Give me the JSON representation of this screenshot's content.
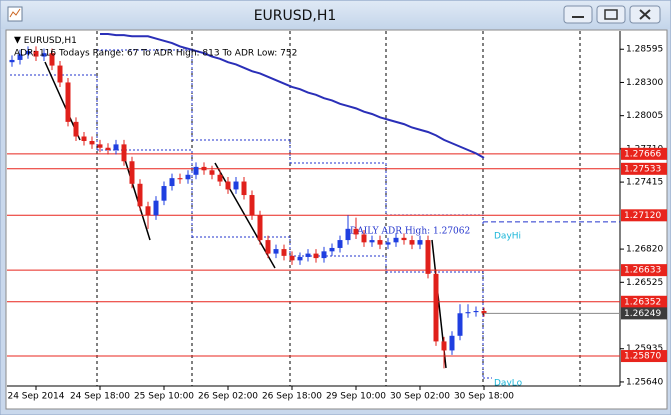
{
  "window": {
    "title": "EURUSD,H1"
  },
  "chart_data": {
    "type": "candlestick",
    "symbol_label": "EURUSD,H1",
    "info": "ADR: 116  Todays Range: 67  To ADR High: 813  To ADR Low: 752",
    "categories": [
      null,
      null,
      null,
      "24 Sep 2014",
      null,
      null,
      null,
      null,
      null,
      null,
      null,
      "24 Sep 18:00",
      null,
      null,
      null,
      null,
      null,
      null,
      null,
      "25 Sep 10:00",
      null,
      null,
      null,
      null,
      null,
      null,
      null,
      "26 Sep 02:00",
      null,
      null,
      null,
      null,
      null,
      null,
      null,
      "26 Sep 18:00",
      null,
      null,
      null,
      null,
      null,
      null,
      null,
      "29 Sep 10:00",
      null,
      null,
      null,
      null,
      null,
      null,
      null,
      "30 Sep 02:00",
      null,
      null,
      null,
      null,
      null,
      null,
      null,
      "30 Sep 18:00"
    ],
    "open": [
      1.2848,
      1.285,
      1.2855,
      1.2858,
      1.2853,
      1.2856,
      1.2845,
      1.283,
      1.2795,
      1.2782,
      1.2778,
      1.2775,
      1.2772,
      1.277,
      1.2775,
      1.276,
      1.274,
      1.272,
      1.2712,
      1.2725,
      1.2738,
      1.2745,
      1.2744,
      1.2748,
      1.2755,
      1.2752,
      1.2748,
      1.2742,
      1.2735,
      1.2742,
      1.273,
      1.2712,
      1.269,
      1.2678,
      1.2682,
      1.2676,
      1.2672,
      1.2675,
      1.2678,
      1.2674,
      1.268,
      1.2683,
      1.269,
      1.27,
      1.2695,
      1.2688,
      1.269,
      1.2686,
      1.2688,
      1.2692,
      1.269,
      1.2686,
      1.269,
      1.266,
      1.26,
      1.2592,
      1.2605,
      1.2625,
      1.2626,
      1.2627
    ],
    "high": [
      1.2854,
      1.2859,
      1.2862,
      1.2862,
      1.286,
      1.286,
      1.2849,
      1.2834,
      1.2799,
      1.2786,
      1.2782,
      1.2779,
      1.2776,
      1.2779,
      1.2779,
      1.2764,
      1.2744,
      1.2724,
      1.2729,
      1.2742,
      1.2749,
      1.2749,
      1.2752,
      1.2759,
      1.2759,
      1.2756,
      1.2752,
      1.2746,
      1.2746,
      1.2746,
      1.2734,
      1.2716,
      1.2694,
      1.2686,
      1.2686,
      1.268,
      1.2679,
      1.2682,
      1.2682,
      1.2684,
      1.2687,
      1.2694,
      1.2712,
      1.271,
      1.2699,
      1.2694,
      1.2694,
      1.2692,
      1.2696,
      1.2696,
      1.2694,
      1.2694,
      1.2694,
      1.2664,
      1.2604,
      1.2609,
      1.2633,
      1.2633,
      1.2631,
      1.263
    ],
    "low": [
      1.2844,
      1.2846,
      1.2851,
      1.2849,
      1.2849,
      1.2841,
      1.2826,
      1.2791,
      1.2778,
      1.2774,
      1.2771,
      1.2768,
      1.2766,
      1.2766,
      1.2756,
      1.2736,
      1.2716,
      1.27,
      1.2708,
      1.2721,
      1.2734,
      1.274,
      1.274,
      1.2744,
      1.2748,
      1.2744,
      1.2738,
      1.2731,
      1.2731,
      1.2726,
      1.2708,
      1.2686,
      1.2674,
      1.2674,
      1.2672,
      1.2668,
      1.2668,
      1.2671,
      1.267,
      1.267,
      1.2676,
      1.2679,
      1.2686,
      1.2691,
      1.2684,
      1.2684,
      1.2682,
      1.2682,
      1.2684,
      1.2686,
      1.2682,
      1.2682,
      1.2656,
      1.2596,
      1.2576,
      1.2588,
      1.2601,
      1.2621,
      1.2622,
      1.2622
    ],
    "close": [
      1.285,
      1.2855,
      1.2858,
      1.2853,
      1.2856,
      1.2845,
      1.283,
      1.2795,
      1.2782,
      1.2778,
      1.2775,
      1.2772,
      1.277,
      1.2775,
      1.276,
      1.274,
      1.272,
      1.2712,
      1.2725,
      1.2738,
      1.2745,
      1.2744,
      1.2748,
      1.2755,
      1.2752,
      1.2748,
      1.2742,
      1.2735,
      1.2742,
      1.273,
      1.2712,
      1.269,
      1.2678,
      1.2682,
      1.2676,
      1.2672,
      1.2675,
      1.2678,
      1.2674,
      1.268,
      1.2683,
      1.269,
      1.27,
      1.2695,
      1.2688,
      1.269,
      1.2686,
      1.2688,
      1.2692,
      1.269,
      1.2686,
      1.269,
      1.266,
      1.26,
      1.2592,
      1.2605,
      1.2625,
      1.2626,
      1.2627,
      1.26249
    ],
    "up_color": "#1f3fe0",
    "down_color": "#e0201b",
    "series": [
      {
        "type": "line",
        "color": "#2a2fb8",
        "values": [
          null,
          null,
          null,
          null,
          null,
          null,
          null,
          null,
          null,
          null,
          null,
          1.2873,
          1.2873,
          1.2872,
          1.2872,
          1.2871,
          1.2871,
          1.2871,
          1.2869,
          1.2867,
          1.2865,
          1.2862,
          1.286,
          1.2858,
          1.2856,
          1.2853,
          1.2851,
          1.2848,
          1.2846,
          1.2843,
          1.284,
          1.2838,
          1.2835,
          1.2832,
          1.2829,
          1.2826,
          1.2824,
          1.2821,
          1.2819,
          1.2816,
          1.2814,
          1.2811,
          1.2809,
          1.2807,
          1.2804,
          1.2802,
          1.2799,
          1.2797,
          1.2795,
          1.2793,
          1.279,
          1.2788,
          1.2786,
          1.2783,
          1.2779,
          1.2776,
          1.2773,
          1.277,
          1.2767,
          1.2763
        ]
      }
    ],
    "levels": {
      "color": "#e8241c",
      "values": [
        1.27666,
        1.27533,
        {
          "value": 1.2712,
          "label": "1.27120"
        },
        1.26633,
        1.26352,
        {
          "value": 1.2587,
          "label": "1.25870"
        }
      ]
    },
    "current_price": 1.26249,
    "adr_high": {
      "value": 1.27062,
      "label": "DAILY ADR High: 1.27062"
    },
    "day_hi_label": "DayHi",
    "day_lo_label": "DayLo",
    "ylim": [
      1.25604,
      1.28757
    ],
    "yticks": [
      1.28595,
      {
        "value": 1.283,
        "label": "1.28300"
      },
      1.28005,
      {
        "value": 1.2771,
        "label": "1.27710"
      },
      1.27415,
      {
        "value": 1.2682,
        "label": "1.26820"
      },
      1.26525,
      1.25935,
      {
        "value": 1.2564,
        "label": "1.25640"
      }
    ]
  }
}
